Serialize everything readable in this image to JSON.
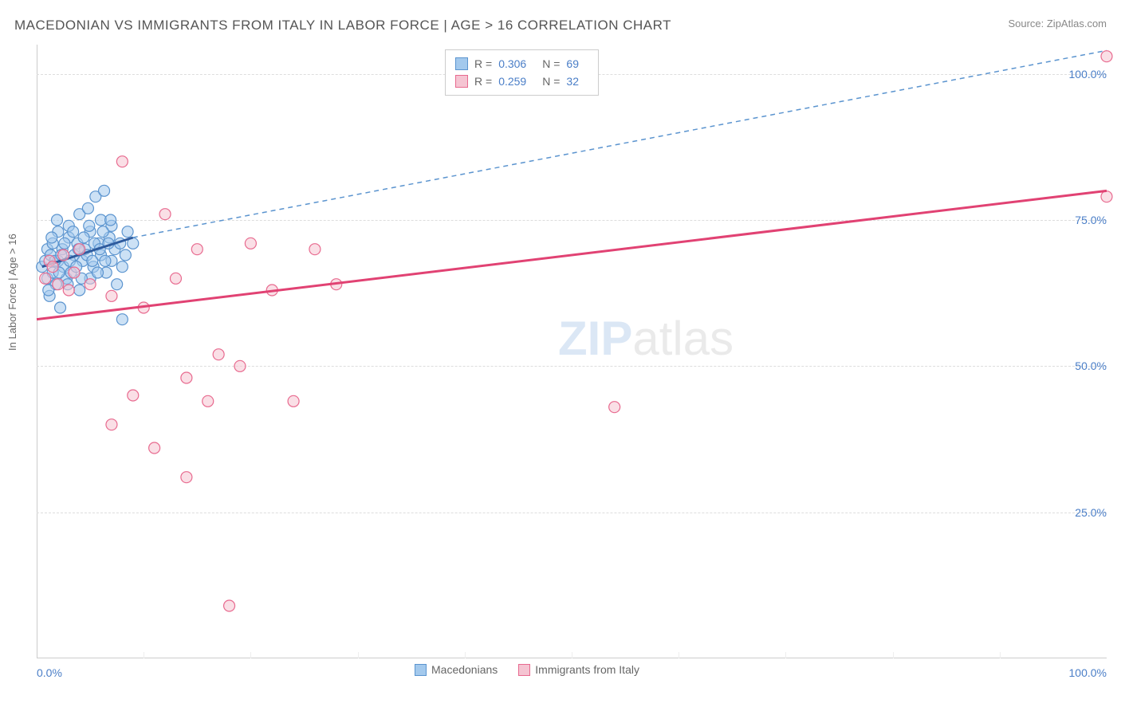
{
  "title": "MACEDONIAN VS IMMIGRANTS FROM ITALY IN LABOR FORCE | AGE > 16 CORRELATION CHART",
  "source_label": "Source: ZipAtlas.com",
  "y_axis_label": "In Labor Force | Age > 16",
  "watermark_a": "ZIP",
  "watermark_b": "atlas",
  "chart": {
    "type": "scatter",
    "xlim": [
      0,
      100
    ],
    "ylim": [
      0,
      105
    ],
    "x_tick_min": "0.0%",
    "x_tick_max": "100.0%",
    "y_ticks": [
      {
        "v": 25,
        "label": "25.0%"
      },
      {
        "v": 50,
        "label": "50.0%"
      },
      {
        "v": 75,
        "label": "75.0%"
      },
      {
        "v": 100,
        "label": "100.0%"
      }
    ],
    "x_minor_ticks": [
      10,
      20,
      30,
      40,
      50,
      60,
      70,
      80,
      90
    ],
    "grid_color": "#dddddd",
    "background_color": "#ffffff",
    "series": [
      {
        "name": "Macedonians",
        "fill": "#a3c9ed",
        "stroke": "#5b94cf",
        "line_color": "#2e5b9e",
        "line_dash_color": "#5b94cf",
        "r_value": "0.306",
        "n_value": "69",
        "trend_solid": {
          "x1": 0.5,
          "y1": 67,
          "x2": 9,
          "y2": 72
        },
        "trend_dash": {
          "x1": 9,
          "y1": 72,
          "x2": 100,
          "y2": 104
        },
        "points": [
          [
            0.5,
            67
          ],
          [
            0.8,
            68
          ],
          [
            1,
            65
          ],
          [
            1,
            70
          ],
          [
            1.2,
            62
          ],
          [
            1.3,
            69
          ],
          [
            1.5,
            66
          ],
          [
            1.5,
            71
          ],
          [
            1.8,
            64
          ],
          [
            2,
            68
          ],
          [
            2,
            73
          ],
          [
            2.2,
            60
          ],
          [
            2.4,
            70
          ],
          [
            2.5,
            67
          ],
          [
            2.8,
            65
          ],
          [
            3,
            72
          ],
          [
            3,
            74
          ],
          [
            3.2,
            66
          ],
          [
            3.5,
            69
          ],
          [
            3.8,
            71
          ],
          [
            4,
            63
          ],
          [
            4,
            76
          ],
          [
            4.3,
            68
          ],
          [
            4.5,
            70
          ],
          [
            4.8,
            77
          ],
          [
            5,
            65
          ],
          [
            5,
            73
          ],
          [
            5.3,
            67
          ],
          [
            5.5,
            79
          ],
          [
            5.8,
            71
          ],
          [
            6,
            69
          ],
          [
            6,
            75
          ],
          [
            6.3,
            80
          ],
          [
            6.5,
            66
          ],
          [
            6.8,
            72
          ],
          [
            7,
            68
          ],
          [
            7,
            74
          ],
          [
            7.3,
            70
          ],
          [
            7.5,
            64
          ],
          [
            7.8,
            71
          ],
          [
            8,
            67
          ],
          [
            8,
            58
          ],
          [
            8.3,
            69
          ],
          [
            8.5,
            73
          ],
          [
            9,
            71
          ],
          [
            1.1,
            63
          ],
          [
            1.4,
            72
          ],
          [
            1.7,
            68
          ],
          [
            1.9,
            75
          ],
          [
            2.1,
            66
          ],
          [
            2.3,
            69
          ],
          [
            2.6,
            71
          ],
          [
            2.9,
            64
          ],
          [
            3.1,
            68
          ],
          [
            3.4,
            73
          ],
          [
            3.7,
            67
          ],
          [
            3.9,
            70
          ],
          [
            4.2,
            65
          ],
          [
            4.4,
            72
          ],
          [
            4.7,
            69
          ],
          [
            4.9,
            74
          ],
          [
            5.2,
            68
          ],
          [
            5.4,
            71
          ],
          [
            5.7,
            66
          ],
          [
            5.9,
            70
          ],
          [
            6.2,
            73
          ],
          [
            6.4,
            68
          ],
          [
            6.7,
            71
          ],
          [
            6.9,
            75
          ]
        ]
      },
      {
        "name": "Immigrants from Italy",
        "fill": "#f5c4d2",
        "stroke": "#e86a8f",
        "line_color": "#e14273",
        "r_value": "0.259",
        "n_value": "32",
        "trend_solid": {
          "x1": 0,
          "y1": 58,
          "x2": 100,
          "y2": 80
        },
        "points": [
          [
            0.8,
            65
          ],
          [
            1.2,
            68
          ],
          [
            1.5,
            67
          ],
          [
            2,
            64
          ],
          [
            2.5,
            69
          ],
          [
            3,
            63
          ],
          [
            3.5,
            66
          ],
          [
            4,
            70
          ],
          [
            5,
            64
          ],
          [
            7,
            62
          ],
          [
            7,
            40
          ],
          [
            8,
            85
          ],
          [
            9,
            45
          ],
          [
            10,
            60
          ],
          [
            11,
            36
          ],
          [
            12,
            76
          ],
          [
            13,
            65
          ],
          [
            14,
            48
          ],
          [
            14,
            31
          ],
          [
            15,
            70
          ],
          [
            16,
            44
          ],
          [
            17,
            52
          ],
          [
            18,
            9
          ],
          [
            19,
            50
          ],
          [
            20,
            71
          ],
          [
            22,
            63
          ],
          [
            24,
            44
          ],
          [
            26,
            70
          ],
          [
            28,
            64
          ],
          [
            54,
            43
          ],
          [
            100,
            103
          ],
          [
            100,
            79
          ]
        ]
      }
    ]
  }
}
